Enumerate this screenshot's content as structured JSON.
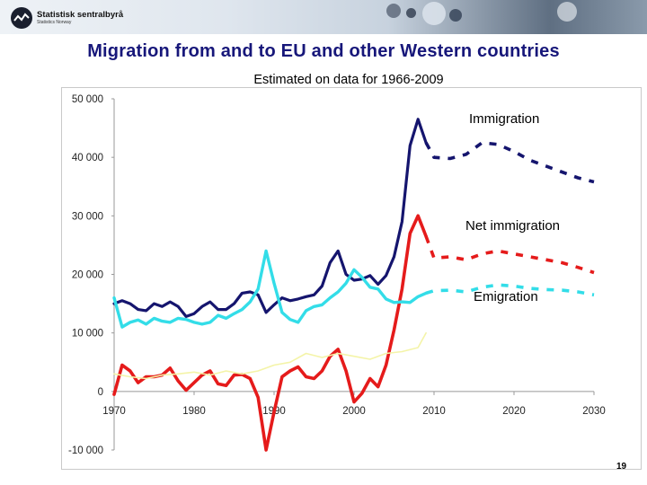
{
  "header": {
    "logo_name": "Statistisk sentralbyrå",
    "logo_sub": "Statistics Norway",
    "logo_icon": "wave-logo-icon"
  },
  "page_number": "19",
  "colors": {
    "immigration": "#15156e",
    "net_immigration": "#e51b1b",
    "emigration": "#33dde8",
    "other": "#f4f4a8"
  },
  "chart_data": {
    "type": "line",
    "title": "Migration from and to EU and other Western countries",
    "subtitle": "Estimated on data for 1966-2009",
    "xlabel": "",
    "ylabel": "",
    "xlim": [
      1970,
      2030
    ],
    "ylim": [
      -10000,
      50000
    ],
    "xticks": [
      "1970",
      "1980",
      "1990",
      "2000",
      "2010",
      "2020",
      "2030"
    ],
    "yticks": [
      "50 000",
      "40 000",
      "30 000",
      "20 000",
      "10 000",
      "0",
      "-10 000"
    ],
    "series": [
      {
        "name": "Immigration",
        "key": "immigration",
        "label": "Immigration",
        "x": [
          1970,
          1971,
          1972,
          1973,
          1974,
          1975,
          1976,
          1977,
          1978,
          1979,
          1980,
          1981,
          1982,
          1983,
          1984,
          1985,
          1986,
          1987,
          1988,
          1989,
          1990,
          1991,
          1992,
          1993,
          1994,
          1995,
          1996,
          1997,
          1998,
          1999,
          2000,
          2001,
          2002,
          2003,
          2004,
          2005,
          2006,
          2007,
          2008,
          2009
        ],
        "y": [
          15000,
          15500,
          15000,
          14000,
          13800,
          15000,
          14500,
          15300,
          14500,
          12800,
          13300,
          14500,
          15300,
          14000,
          14000,
          15000,
          16800,
          17000,
          16500,
          13500,
          14800,
          16000,
          15500,
          15800,
          16200,
          16500,
          18000,
          22000,
          24000,
          20000,
          19000,
          19200,
          19800,
          18300,
          19800,
          23000,
          29000,
          42000,
          46500,
          42500
        ],
        "forecast_x": [
          2009,
          2010,
          2012,
          2014,
          2016,
          2018,
          2020,
          2022,
          2024,
          2026,
          2028,
          2030
        ],
        "forecast_y": [
          42500,
          40000,
          39800,
          40500,
          42500,
          42200,
          41000,
          39500,
          38500,
          37500,
          36500,
          35800
        ]
      },
      {
        "name": "Net immigration",
        "key": "net_immigration",
        "label": "Net immigration",
        "x": [
          1970,
          1971,
          1972,
          1973,
          1974,
          1975,
          1976,
          1977,
          1978,
          1979,
          1980,
          1981,
          1982,
          1983,
          1984,
          1985,
          1986,
          1987,
          1988,
          1989,
          1990,
          1991,
          1992,
          1993,
          1994,
          1995,
          1996,
          1997,
          1998,
          1999,
          2000,
          2001,
          2002,
          2003,
          2004,
          2005,
          2006,
          2007,
          2008,
          2009
        ],
        "y": [
          -500,
          4500,
          3500,
          1500,
          2500,
          2500,
          2800,
          4000,
          1800,
          200,
          1500,
          2800,
          3500,
          1300,
          1000,
          2800,
          2900,
          2200,
          -1000,
          -10000,
          -3500,
          2500,
          3500,
          4200,
          2500,
          2200,
          3500,
          6000,
          7200,
          3500,
          -1800,
          -300,
          2200,
          800,
          4500,
          10500,
          17500,
          27000,
          30000,
          26500
        ],
        "forecast_x": [
          2009,
          2010,
          2012,
          2014,
          2016,
          2018,
          2020,
          2022,
          2024,
          2026,
          2028,
          2030
        ],
        "forecast_y": [
          26500,
          22800,
          23000,
          22500,
          23500,
          24000,
          23500,
          23000,
          22500,
          22000,
          21200,
          20300
        ]
      },
      {
        "name": "Emigration",
        "key": "emigration",
        "label": "Emigration",
        "x": [
          1970,
          1971,
          1972,
          1973,
          1974,
          1975,
          1976,
          1977,
          1978,
          1979,
          1980,
          1981,
          1982,
          1983,
          1984,
          1985,
          1986,
          1987,
          1988,
          1989,
          1990,
          1991,
          1992,
          1993,
          1994,
          1995,
          1996,
          1997,
          1998,
          1999,
          2000,
          2001,
          2002,
          2003,
          2004,
          2005,
          2006,
          2007,
          2008,
          2009
        ],
        "y": [
          16000,
          11000,
          11800,
          12200,
          11500,
          12500,
          12000,
          11800,
          12500,
          12300,
          11800,
          11500,
          11800,
          13000,
          12500,
          13300,
          14000,
          15300,
          17500,
          24000,
          18500,
          13500,
          12300,
          11800,
          13800,
          14500,
          14800,
          16000,
          17000,
          18500,
          20800,
          19500,
          17800,
          17500,
          15800,
          15200,
          15300,
          15200,
          16200,
          16800
        ],
        "forecast_x": [
          2009,
          2010,
          2012,
          2014,
          2016,
          2018,
          2020,
          2022,
          2024,
          2026,
          2028,
          2030
        ],
        "forecast_y": [
          16800,
          17200,
          17300,
          17000,
          17800,
          18200,
          18000,
          17600,
          17400,
          17300,
          17000,
          16500
        ]
      },
      {
        "name": "Other",
        "key": "other",
        "label": "",
        "x": [
          1970,
          1972,
          1974,
          1976,
          1978,
          1980,
          1982,
          1984,
          1986,
          1988,
          1990,
          1992,
          1994,
          1996,
          1998,
          2000,
          2002,
          2004,
          2006,
          2008,
          2009
        ],
        "y": [
          3000,
          2500,
          2200,
          2800,
          3000,
          3300,
          2800,
          3500,
          3000,
          3500,
          4500,
          5000,
          6500,
          5800,
          6500,
          6000,
          5500,
          6500,
          6800,
          7500,
          10000
        ]
      }
    ],
    "annotations": [
      "Immigration",
      "Net immigration",
      "Emigration"
    ]
  }
}
